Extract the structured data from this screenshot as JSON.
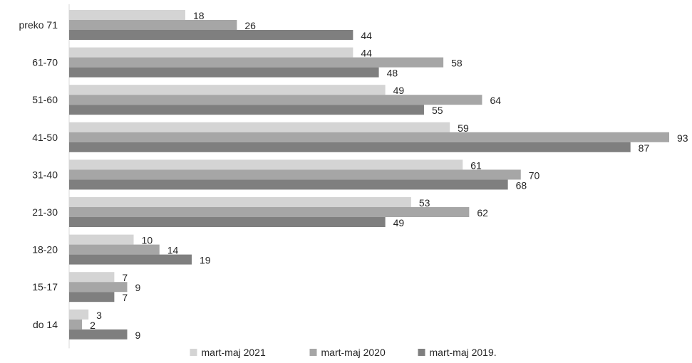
{
  "chart_data": {
    "type": "bar",
    "orientation": "horizontal",
    "categories": [
      "preko 71",
      "61-70",
      "51-60",
      "41-50",
      "31-40",
      "21-30",
      "18-20",
      "15-17",
      "do 14"
    ],
    "series": [
      {
        "name": "mart-maj 2021",
        "color": "#d4d4d4",
        "values": [
          18,
          44,
          49,
          59,
          61,
          53,
          10,
          7,
          3
        ]
      },
      {
        "name": "mart-maj 2020",
        "color": "#a6a6a6",
        "values": [
          26,
          58,
          64,
          93,
          70,
          62,
          14,
          9,
          2
        ]
      },
      {
        "name": "mart-maj 2019.",
        "color": "#7f7f7f",
        "values": [
          44,
          48,
          55,
          87,
          68,
          49,
          19,
          7,
          9
        ]
      }
    ],
    "xlim": [
      0,
      93
    ],
    "data_labels": true,
    "grid": false,
    "legend_position": "bottom"
  }
}
